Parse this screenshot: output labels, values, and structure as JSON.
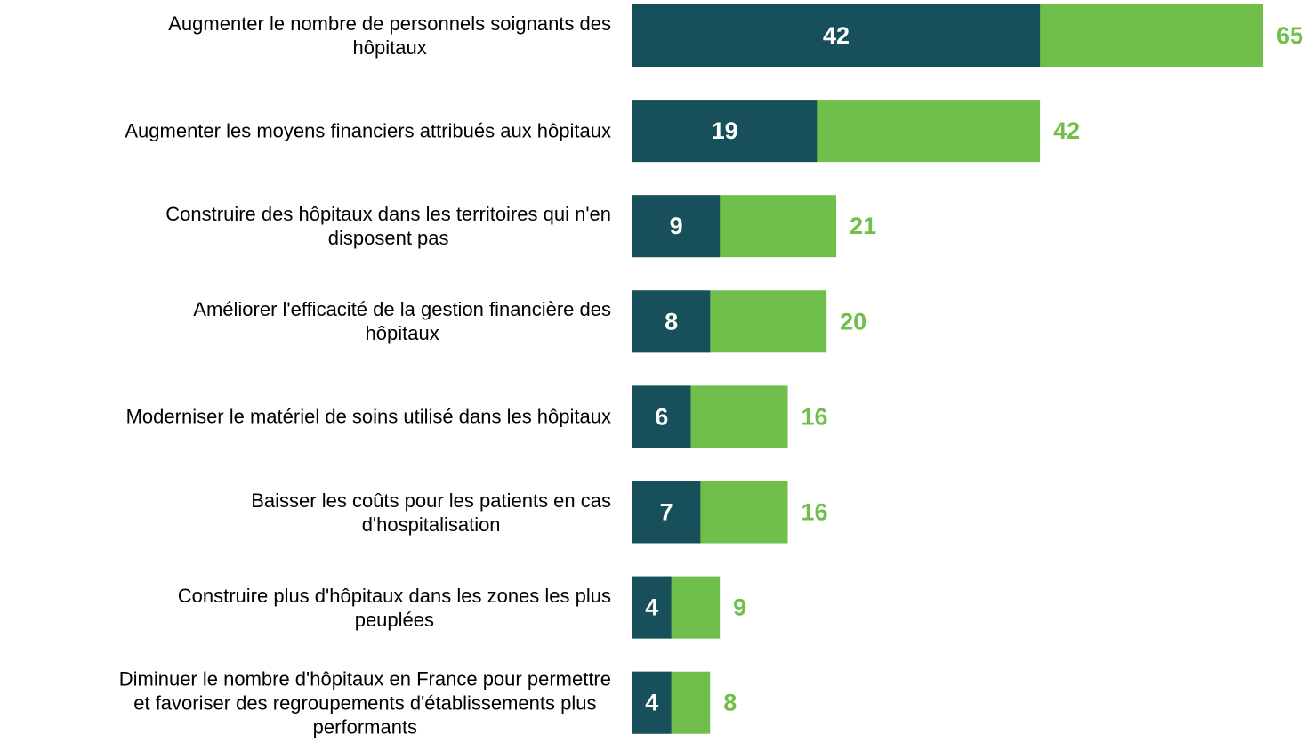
{
  "chart_data": {
    "type": "bar",
    "orientation": "horizontal",
    "categories": [
      "Augmenter le nombre de personnels soignants des\nhôpitaux",
      "Augmenter les moyens financiers attribués aux hôpitaux",
      "Construire des hôpitaux dans les territoires qui n'en\ndisposent pas",
      "Améliorer l'efficacité de la gestion financière des\nhôpitaux",
      "Moderniser le matériel de soins utilisé dans les hôpitaux",
      "Baisser les coûts pour les patients en cas\nd'hospitalisation",
      "Construire plus d'hôpitaux dans les zones les plus\npeuplées",
      "Diminuer le nombre d'hôpitaux en France pour permettre\net favoriser des regroupements d'établissements plus\nperformants"
    ],
    "series": [
      {
        "color": "#70bf4b",
        "values": [
          65,
          42,
          21,
          20,
          16,
          16,
          9,
          8
        ]
      },
      {
        "color": "#17505a",
        "values": [
          42,
          19,
          9,
          8,
          6,
          7,
          4,
          4
        ]
      }
    ]
  }
}
